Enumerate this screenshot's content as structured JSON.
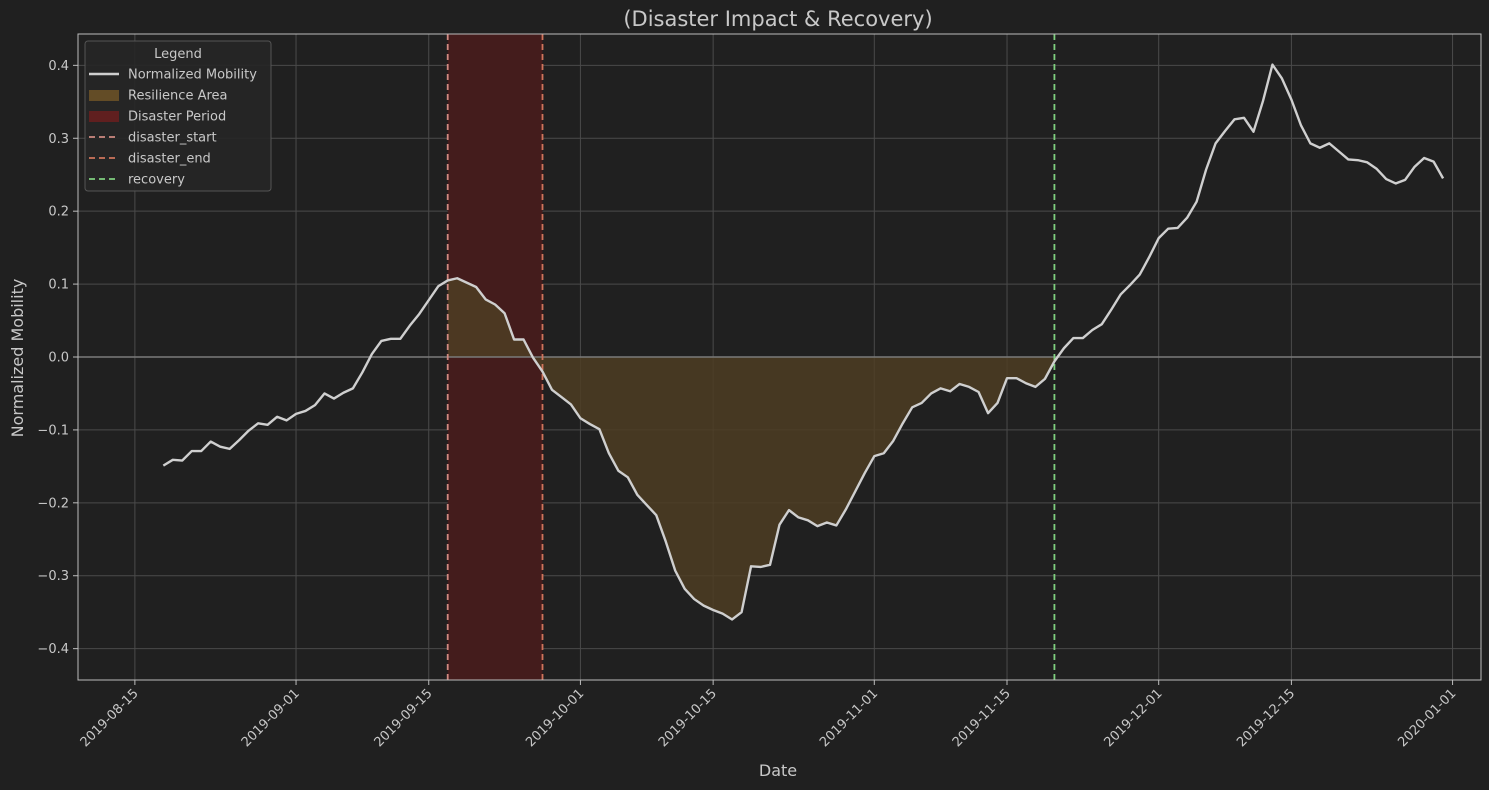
{
  "chart_data": {
    "type": "line",
    "title": "(Disaster Impact & Recovery)",
    "xlabel": "Date",
    "ylabel": "Normalized Mobility",
    "xlim": [
      "2019-08-09",
      "2020-01-04"
    ],
    "ylim": [
      -0.443,
      0.443
    ],
    "x_ticks": [
      "2019-08-15",
      "2019-09-01",
      "2019-09-15",
      "2019-10-01",
      "2019-10-15",
      "2019-11-01",
      "2019-11-15",
      "2019-12-01",
      "2019-12-15",
      "2020-01-01"
    ],
    "y_ticks": [
      -0.4,
      -0.3,
      -0.2,
      -0.1,
      0.0,
      0.1,
      0.2,
      0.3,
      0.4
    ],
    "y_tick_labels": [
      "−0.4",
      "−0.3",
      "−0.2",
      "−0.1",
      "0.0",
      "0.1",
      "0.2",
      "0.3",
      "0.4"
    ],
    "grid": true,
    "legend_position": "top-left",
    "legend_title": "Legend",
    "legend": [
      {
        "label": "Normalized Mobility",
        "kind": "line",
        "color": "#cfcfcf"
      },
      {
        "label": "Resilience Area",
        "kind": "patch",
        "color": "#6e5327"
      },
      {
        "label": "Disaster Period",
        "kind": "patch",
        "color": "#6b1f1f"
      },
      {
        "label": "disaster_start",
        "kind": "dashed",
        "color": "#d08a82"
      },
      {
        "label": "disaster_end",
        "kind": "dashed",
        "color": "#d0755c"
      },
      {
        "label": "recovery",
        "kind": "dashed",
        "color": "#7fd07f"
      }
    ],
    "events": {
      "disaster_start": "2019-09-17",
      "disaster_end": "2019-09-27",
      "recovery": "2019-11-20"
    },
    "colors": {
      "background": "#202020",
      "line": "#cfcfcf",
      "resilience_fill": "#4d3d23",
      "disaster_fill": "#441c1c",
      "disaster_start": "#d08a82",
      "disaster_end": "#d0755c",
      "recovery": "#7fd07f",
      "grid": "#4a4a4a",
      "axis": "#bdbdbd",
      "text": "#c8c8c8"
    },
    "series": [
      {
        "name": "Normalized Mobility",
        "x": [
          "2019-08-18",
          "2019-08-19",
          "2019-08-20",
          "2019-08-21",
          "2019-08-22",
          "2019-08-23",
          "2019-08-24",
          "2019-08-25",
          "2019-08-26",
          "2019-08-27",
          "2019-08-28",
          "2019-08-29",
          "2019-08-30",
          "2019-08-31",
          "2019-09-01",
          "2019-09-02",
          "2019-09-03",
          "2019-09-04",
          "2019-09-05",
          "2019-09-06",
          "2019-09-07",
          "2019-09-08",
          "2019-09-09",
          "2019-09-10",
          "2019-09-11",
          "2019-09-12",
          "2019-09-13",
          "2019-09-14",
          "2019-09-15",
          "2019-09-16",
          "2019-09-17",
          "2019-09-18",
          "2019-09-19",
          "2019-09-20",
          "2019-09-21",
          "2019-09-22",
          "2019-09-23",
          "2019-09-24",
          "2019-09-25",
          "2019-09-26",
          "2019-09-27",
          "2019-09-28",
          "2019-09-29",
          "2019-09-30",
          "2019-10-01",
          "2019-10-02",
          "2019-10-03",
          "2019-10-04",
          "2019-10-05",
          "2019-10-06",
          "2019-10-07",
          "2019-10-08",
          "2019-10-09",
          "2019-10-10",
          "2019-10-11",
          "2019-10-12",
          "2019-10-13",
          "2019-10-14",
          "2019-10-15",
          "2019-10-16",
          "2019-10-17",
          "2019-10-18",
          "2019-10-19",
          "2019-10-20",
          "2019-10-21",
          "2019-10-22",
          "2019-10-23",
          "2019-10-24",
          "2019-10-25",
          "2019-10-26",
          "2019-10-27",
          "2019-10-28",
          "2019-10-29",
          "2019-10-30",
          "2019-10-31",
          "2019-11-01",
          "2019-11-02",
          "2019-11-03",
          "2019-11-04",
          "2019-11-05",
          "2019-11-06",
          "2019-11-07",
          "2019-11-08",
          "2019-11-09",
          "2019-11-10",
          "2019-11-11",
          "2019-11-12",
          "2019-11-13",
          "2019-11-14",
          "2019-11-15",
          "2019-11-16",
          "2019-11-17",
          "2019-11-18",
          "2019-11-19",
          "2019-11-20",
          "2019-11-21",
          "2019-11-22",
          "2019-11-23",
          "2019-11-24",
          "2019-11-25",
          "2019-11-26",
          "2019-11-27",
          "2019-11-28",
          "2019-11-29",
          "2019-11-30",
          "2019-12-01",
          "2019-12-02",
          "2019-12-03",
          "2019-12-04",
          "2019-12-05",
          "2019-12-06",
          "2019-12-07",
          "2019-12-08",
          "2019-12-09",
          "2019-12-10",
          "2019-12-11",
          "2019-12-12",
          "2019-12-13",
          "2019-12-14",
          "2019-12-15",
          "2019-12-16",
          "2019-12-17",
          "2019-12-18",
          "2019-12-19",
          "2019-12-20",
          "2019-12-21",
          "2019-12-22",
          "2019-12-23",
          "2019-12-24",
          "2019-12-25",
          "2019-12-26",
          "2019-12-27",
          "2019-12-28",
          "2019-12-29",
          "2019-12-30",
          "2019-12-31"
        ],
        "values": [
          -0.149,
          -0.141,
          -0.142,
          -0.129,
          -0.129,
          -0.116,
          -0.123,
          -0.126,
          -0.114,
          -0.101,
          -0.091,
          -0.093,
          -0.082,
          -0.087,
          -0.078,
          -0.074,
          -0.066,
          -0.05,
          -0.057,
          -0.049,
          -0.043,
          -0.021,
          0.004,
          0.022,
          0.025,
          0.025,
          0.043,
          0.059,
          0.078,
          0.097,
          0.105,
          0.108,
          0.102,
          0.096,
          0.079,
          0.072,
          0.06,
          0.024,
          0.024,
          -0.001,
          -0.02,
          -0.045,
          -0.055,
          -0.065,
          -0.084,
          -0.092,
          -0.099,
          -0.132,
          -0.156,
          -0.165,
          -0.189,
          -0.203,
          -0.217,
          -0.253,
          -0.293,
          -0.318,
          -0.332,
          -0.341,
          -0.347,
          -0.352,
          -0.36,
          -0.35,
          -0.287,
          -0.288,
          -0.285,
          -0.23,
          -0.21,
          -0.22,
          -0.224,
          -0.232,
          -0.227,
          -0.231,
          -0.209,
          -0.184,
          -0.159,
          -0.136,
          -0.132,
          -0.115,
          -0.091,
          -0.069,
          -0.063,
          -0.05,
          -0.043,
          -0.047,
          -0.037,
          -0.041,
          -0.048,
          -0.077,
          -0.063,
          -0.029,
          -0.029,
          -0.036,
          -0.041,
          -0.03,
          -0.006,
          0.012,
          0.026,
          0.026,
          0.037,
          0.045,
          0.065,
          0.086,
          0.099,
          0.113,
          0.137,
          0.163,
          0.176,
          0.177,
          0.191,
          0.213,
          0.257,
          0.293,
          0.31,
          0.326,
          0.328,
          0.309,
          0.351,
          0.401,
          0.382,
          0.353,
          0.318,
          0.293,
          0.287,
          0.293,
          0.282,
          0.271,
          0.27,
          0.267,
          0.258,
          0.244,
          0.238,
          0.243,
          0.261,
          0.273,
          0.268,
          0.245
        ]
      }
    ]
  }
}
